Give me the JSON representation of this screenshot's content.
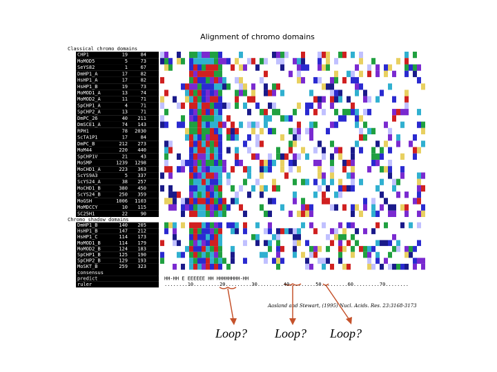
{
  "figure": {
    "title": "Alignment of chromo domains",
    "classical_label": "Classical chromo domains",
    "shadow_label": "Chromo shadow domains",
    "classical_rows": [
      {
        "name": "CHP1",
        "start": "19",
        "end": "84"
      },
      {
        "name": "MoMOD5",
        "start": "5",
        "end": "73"
      },
      {
        "name": "SeYS82",
        "start": "1",
        "end": "67"
      },
      {
        "name": "DmHP1_A",
        "start": "17",
        "end": "82"
      },
      {
        "name": "HsHP1_A",
        "start": "17",
        "end": "82"
      },
      {
        "name": "HsHP1_B",
        "start": "19",
        "end": "73"
      },
      {
        "name": "MoMOD1_A",
        "start": "13",
        "end": "74"
      },
      {
        "name": "MoMOD2_A",
        "start": "11",
        "end": "71"
      },
      {
        "name": "SpCHP1_A",
        "start": "4",
        "end": "71"
      },
      {
        "name": "SpCHP2_A",
        "start": "13",
        "end": "71"
      },
      {
        "name": "DmPC_26",
        "start": "40",
        "end": "211"
      },
      {
        "name": "DmSCE1_A",
        "start": "74",
        "end": "143"
      },
      {
        "name": "RPH1",
        "start": "78",
        "end": "2030"
      },
      {
        "name": "ScTA1P1",
        "start": "17",
        "end": "84"
      },
      {
        "name": "DmPC_B",
        "start": "212",
        "end": "273"
      },
      {
        "name": "MoM44",
        "start": "220",
        "end": "440"
      },
      {
        "name": "SpCHP1V",
        "start": "21",
        "end": "43"
      },
      {
        "name": "MoSMP",
        "start": "1239",
        "end": "1298"
      },
      {
        "name": "MoCHD1_A",
        "start": "223",
        "end": "363"
      },
      {
        "name": "ScYS9A3",
        "start": "5",
        "end": "337"
      },
      {
        "name": "ScYS24_A",
        "start": "38",
        "end": "257"
      },
      {
        "name": "MoCHD1_B",
        "start": "380",
        "end": "450"
      },
      {
        "name": "ScYS24_B",
        "start": "250",
        "end": "359"
      },
      {
        "name": "MoGSH",
        "start": "1006",
        "end": "1103"
      },
      {
        "name": "MoMDCCY",
        "start": "10",
        "end": "115"
      },
      {
        "name": "SC25H1",
        "start": "22",
        "end": "90"
      }
    ],
    "shadow_rows": [
      {
        "name": "DmHP1_B",
        "start": "140",
        "end": "205"
      },
      {
        "name": "HsHP1_B",
        "start": "147",
        "end": "212"
      },
      {
        "name": "HsHP1_C",
        "start": "114",
        "end": "173"
      },
      {
        "name": "MoMOD1_B",
        "start": "114",
        "end": "179"
      },
      {
        "name": "MoMOD2_B",
        "start": "124",
        "end": "183"
      },
      {
        "name": "SpCHP1_B",
        "start": "125",
        "end": "190"
      },
      {
        "name": "SpCHP2_B",
        "start": "129",
        "end": "193"
      },
      {
        "name": "MoSKT_B",
        "start": "259",
        "end": "323"
      }
    ],
    "footer_rows": [
      "consensus",
      "predict",
      "ruler"
    ],
    "predict_line": "HH-HH E          EEEEEE              HH  HHHHHHHH-HH",
    "ruler_line": "........10.........20.........30.........40.........50.........60.........70........",
    "citation": "Aasland and Stewart, (1995) Nucl. Acids. Res. 23:3168-3173",
    "loops": [
      "Loop?",
      "Loop?",
      "Loop?"
    ]
  }
}
